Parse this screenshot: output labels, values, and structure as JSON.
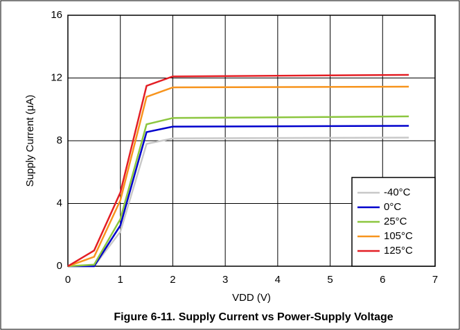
{
  "chart_data": {
    "type": "line",
    "title": "Figure 6-11. Supply Current vs Power-Supply Voltage",
    "x_label": "VDD (V)",
    "y_label": "Supply Current (μA)",
    "x": [
      0,
      0.5,
      1,
      1.5,
      2,
      6.5
    ],
    "series": [
      {
        "name": "-40°C",
        "color": "#c8c8c8",
        "values": [
          0,
          0,
          2.2,
          7.8,
          8.15,
          8.2
        ]
      },
      {
        "name": "0°C",
        "color": "#0000cc",
        "values": [
          0,
          0,
          2.6,
          8.55,
          8.9,
          8.95
        ]
      },
      {
        "name": "25°C",
        "color": "#8cc63f",
        "values": [
          0,
          0.1,
          3.0,
          9.05,
          9.45,
          9.55
        ]
      },
      {
        "name": "105°C",
        "color": "#f7941d",
        "values": [
          0,
          0.6,
          4.2,
          10.8,
          11.4,
          11.45
        ]
      },
      {
        "name": "125°C",
        "color": "#e31e24",
        "values": [
          0,
          1.0,
          4.7,
          11.5,
          12.1,
          12.2
        ]
      }
    ],
    "xlim": [
      0,
      7
    ],
    "xticks": [
      0,
      1,
      2,
      3,
      4,
      5,
      6,
      7
    ],
    "ylim": [
      0,
      16
    ],
    "yticks": [
      0,
      4,
      8,
      12,
      16
    ],
    "grid": true,
    "legend": "lower-right"
  }
}
